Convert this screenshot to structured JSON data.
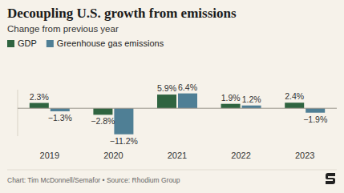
{
  "chart_data": {
    "type": "bar",
    "title": "Decoupling U.S. growth from emissions",
    "subtitle": "Change from previous year",
    "source": "Chart: Tim McDonnell/Semafor • Source: Rhodium Group",
    "categories": [
      "2019",
      "2020",
      "2021",
      "2022",
      "2023"
    ],
    "series": [
      {
        "name": "GDP",
        "color": "#2f6440",
        "values": [
          2.3,
          -2.8,
          5.9,
          1.9,
          2.4
        ],
        "value_labels": [
          "2.3%",
          "−2.8%",
          "5.9%",
          "1.9%",
          "2.4%"
        ]
      },
      {
        "name": "Greenhouse gas emissions",
        "color": "#4f7f95",
        "values": [
          -1.3,
          -11.2,
          6.4,
          1.2,
          -1.9
        ],
        "value_labels": [
          "−1.3%",
          "−11.2%",
          "6.4%",
          "1.2%",
          "−1.9%"
        ]
      }
    ],
    "ylim": [
      -12,
      8
    ],
    "yticks": [
      0
    ],
    "tick_labels": "x",
    "data_labels": true,
    "legend": "top-left"
  }
}
